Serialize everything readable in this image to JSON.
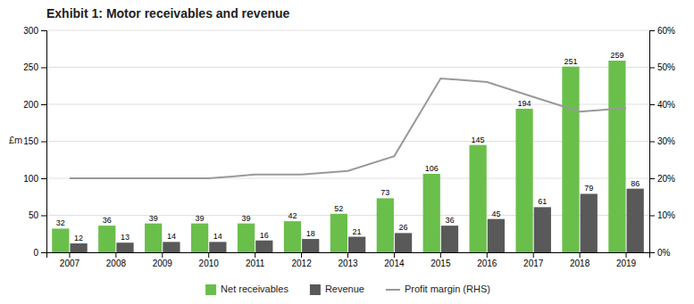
{
  "chart_data": {
    "type": "bar",
    "title": "Exhibit 1: Motor receivables and revenue",
    "categories": [
      2007,
      2008,
      2009,
      2010,
      2011,
      2012,
      2013,
      2014,
      2015,
      2016,
      2017,
      2018,
      2019
    ],
    "series": [
      {
        "name": "Net receivables",
        "type": "bar",
        "color": "#6abf4b",
        "data_labels": true,
        "values": [
          32,
          36,
          39,
          39,
          39,
          42,
          52,
          73,
          106,
          145,
          194,
          251,
          259
        ]
      },
      {
        "name": "Revenue",
        "type": "bar",
        "color": "#595959",
        "data_labels": true,
        "values": [
          12,
          13,
          14,
          14,
          16,
          18,
          21,
          26,
          36,
          45,
          61,
          79,
          86
        ]
      },
      {
        "name": "Profit margin (RHS)",
        "type": "line",
        "color": "#999999",
        "axis": "y2",
        "values": [
          0.2,
          0.2,
          0.2,
          0.2,
          0.21,
          0.21,
          0.22,
          0.26,
          0.47,
          0.46,
          0.42,
          0.38,
          0.39
        ]
      }
    ],
    "ylabel": "£m",
    "ylim": [
      0,
      300
    ],
    "yticks": [
      0,
      50,
      100,
      150,
      200,
      250,
      300
    ],
    "y2lim": [
      0,
      0.6
    ],
    "y2ticks": [
      {
        "value": 0.0,
        "label": "0%"
      },
      {
        "value": 0.1,
        "label": "10%"
      },
      {
        "value": 0.2,
        "label": "20%"
      },
      {
        "value": 0.3,
        "label": "30%"
      },
      {
        "value": 0.4,
        "label": "40%"
      },
      {
        "value": 0.5,
        "label": "50%"
      },
      {
        "value": 0.6,
        "label": "60%"
      }
    ],
    "grid": true,
    "legend": "bottom"
  }
}
